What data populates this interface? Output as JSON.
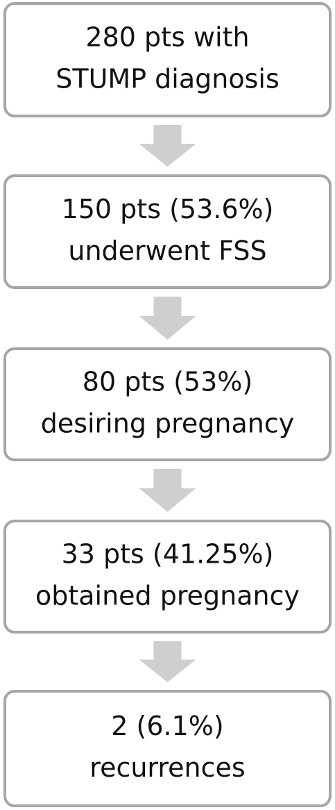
{
  "nodes": [
    {
      "lines": [
        "280 pts with",
        "STUMP diagnosis"
      ]
    },
    {
      "lines": [
        "150 pts (53.6%)",
        "underwent FSS"
      ]
    },
    {
      "lines": [
        "80 pts (53%)",
        "desiring pregnancy"
      ]
    },
    {
      "lines": [
        "33 pts (41.25%)",
        "obtained pregnancy"
      ]
    },
    {
      "lines": [
        "2 (6.1%)",
        "recurrences"
      ]
    }
  ]
}
